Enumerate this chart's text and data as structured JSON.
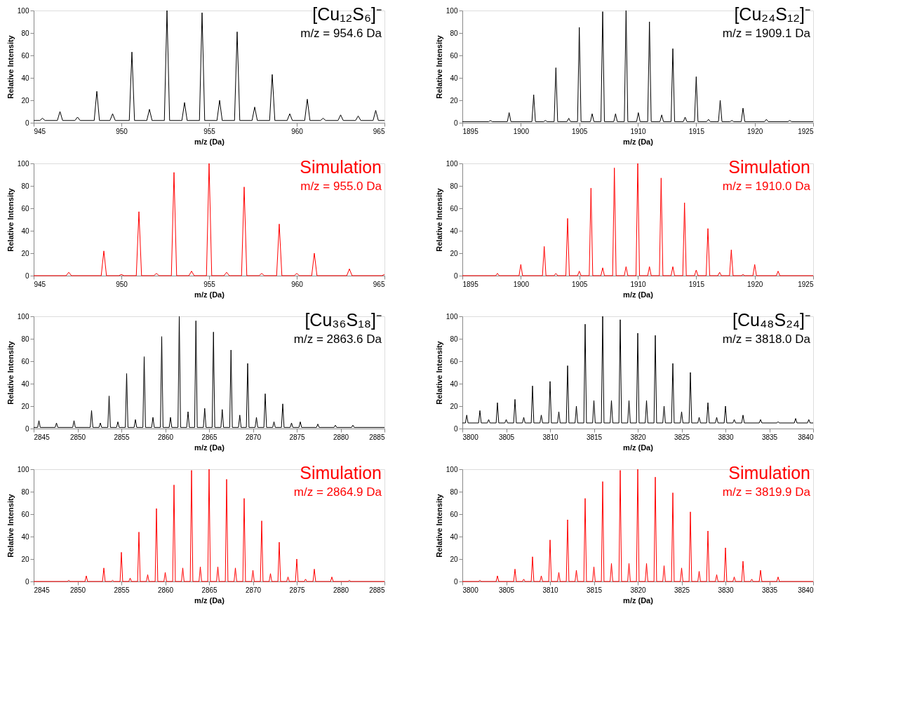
{
  "chart_data": [
    {
      "type": "line",
      "title": "[Cu₁₂S₆]⁻",
      "subtitle": "m/z = 954.6 Da",
      "xlabel": "m/z (Da)",
      "ylabel": "Relative Intensity",
      "xlim": [
        945,
        965
      ],
      "xticks": [
        945,
        950,
        955,
        960,
        965
      ],
      "ylim": [
        0,
        100
      ],
      "yticks": [
        0,
        20,
        40,
        60,
        80,
        100
      ],
      "series": [
        {
          "color": "#000000",
          "x": [
            945,
            945.35,
            945.5,
            945.65,
            946.35,
            946.5,
            946.65,
            947.35,
            947.5,
            947.65,
            948.45,
            948.6,
            948.75,
            949.35,
            949.5,
            949.65,
            950.45,
            950.6,
            950.75,
            951.45,
            951.6,
            951.75,
            952.45,
            952.6,
            952.75,
            953.45,
            953.6,
            953.75,
            954.45,
            954.6,
            954.75,
            955.45,
            955.6,
            955.75,
            956.45,
            956.6,
            956.75,
            957.45,
            957.6,
            957.75,
            958.45,
            958.6,
            958.75,
            959.45,
            959.6,
            959.75,
            960.45,
            960.6,
            960.75,
            961.35,
            961.5,
            961.65,
            962.35,
            962.5,
            962.65,
            963.35,
            963.5,
            963.65,
            964.35,
            964.5,
            964.65,
            965
          ],
          "values": [
            2,
            2,
            4,
            2,
            2,
            10,
            2,
            2,
            5,
            2,
            2,
            28,
            2,
            2,
            8,
            2,
            2,
            63,
            2,
            2,
            12,
            2,
            2,
            100,
            2,
            2,
            18,
            2,
            2,
            98,
            2,
            2,
            20,
            2,
            2,
            81,
            2,
            2,
            14,
            2,
            2,
            43,
            2,
            2,
            8,
            2,
            2,
            21,
            2,
            2,
            4,
            2,
            2,
            7,
            2,
            2,
            6,
            2,
            2,
            11,
            2,
            2
          ]
        }
      ]
    },
    {
      "type": "line",
      "title": "[Cu₂₄S₁₂]⁻",
      "subtitle": "m/z = 1909.1 Da",
      "xlabel": "m/z (Da)",
      "ylabel": "Relative Intensity",
      "xlim": [
        1895,
        1925
      ],
      "xticks": [
        1895,
        1900,
        1905,
        1910,
        1915,
        1920,
        1925
      ],
      "ylim": [
        0,
        100
      ],
      "yticks": [
        0,
        20,
        40,
        60,
        80,
        100
      ],
      "series": [
        {
          "color": "#000000",
          "x": [
            1895,
            1897.25,
            1897.4,
            1897.55,
            1898.85,
            1899,
            1899.15,
            1900.95,
            1901.1,
            1901.25,
            1901.95,
            1902.1,
            1902.25,
            1902.85,
            1903,
            1903.15,
            1903.95,
            1904.1,
            1904.25,
            1904.85,
            1905,
            1905.15,
            1905.95,
            1906.1,
            1906.25,
            1906.85,
            1907,
            1907.15,
            1907.95,
            1908.1,
            1908.25,
            1908.85,
            1909,
            1909.15,
            1909.9,
            1910.05,
            1910.2,
            1910.85,
            1911,
            1911.15,
            1911.9,
            1912.05,
            1912.2,
            1912.85,
            1913,
            1913.15,
            1913.9,
            1914.05,
            1914.2,
            1914.85,
            1915,
            1915.15,
            1915.9,
            1916.05,
            1916.2,
            1916.9,
            1917.05,
            1917.2,
            1917.9,
            1918.05,
            1918.2,
            1918.85,
            1919,
            1919.15,
            1920.85,
            1921,
            1921.15,
            1922.85,
            1923,
            1923.15,
            1925
          ],
          "values": [
            1,
            1,
            2,
            1,
            1,
            9,
            1,
            1,
            25,
            1,
            1,
            2,
            1,
            1,
            49,
            1,
            1,
            4,
            1,
            1,
            85,
            1,
            1,
            8,
            1,
            1,
            99,
            1,
            1,
            8,
            1,
            1,
            100,
            1,
            1,
            9,
            1,
            1,
            90,
            1,
            1,
            7,
            1,
            1,
            66,
            1,
            1,
            5,
            1,
            1,
            41,
            1,
            1,
            3,
            1,
            1,
            20,
            1,
            1,
            2,
            1,
            1,
            13,
            1,
            1,
            3,
            1,
            1,
            2,
            1,
            1
          ]
        }
      ]
    },
    {
      "type": "line",
      "title": "Simulation",
      "subtitle": "m/z = 955.0 Da",
      "xlabel": "m/z (Da)",
      "ylabel": "Relative Intensity",
      "xlim": [
        945,
        965
      ],
      "xticks": [
        945,
        950,
        955,
        960,
        965
      ],
      "ylim": [
        0,
        100
      ],
      "yticks": [
        0,
        20,
        40,
        60,
        80,
        100
      ],
      "series": [
        {
          "color": "#ff0000",
          "x": [
            945,
            946.85,
            947,
            947.15,
            948.85,
            949,
            949.15,
            949.85,
            950,
            950.15,
            950.85,
            951,
            951.15,
            951.85,
            952,
            952.15,
            952.85,
            953,
            953.15,
            953.85,
            954,
            954.15,
            954.85,
            955,
            955.15,
            955.85,
            956,
            956.15,
            956.85,
            957,
            957.15,
            957.85,
            958,
            958.15,
            958.85,
            959,
            959.15,
            959.85,
            960,
            960.15,
            960.85,
            961,
            961.15,
            962.85,
            963,
            963.15,
            964.85,
            965
          ],
          "values": [
            0,
            0,
            3,
            0,
            0,
            22,
            0,
            0,
            1,
            0,
            0,
            57,
            0,
            0,
            2,
            0,
            0,
            92,
            0,
            0,
            4,
            0,
            0,
            100,
            0,
            0,
            3,
            0,
            0,
            79,
            0,
            0,
            2,
            0,
            0,
            46,
            0,
            0,
            2,
            0,
            0,
            20,
            0,
            0,
            6,
            0,
            0,
            1
          ]
        }
      ]
    },
    {
      "type": "line",
      "title": "Simulation",
      "subtitle": "m/z = 1910.0 Da",
      "xlabel": "m/z (Da)",
      "ylabel": "Relative Intensity",
      "xlim": [
        1895,
        1925
      ],
      "xticks": [
        1895,
        1900,
        1905,
        1910,
        1915,
        1920,
        1925
      ],
      "ylim": [
        0,
        100
      ],
      "yticks": [
        0,
        20,
        40,
        60,
        80,
        100
      ],
      "series": [
        {
          "color": "#ff0000",
          "x": [
            1895,
            1897.85,
            1898,
            1898.15,
            1899.85,
            1900,
            1900.15,
            1901.85,
            1902,
            1902.15,
            1902.85,
            1903,
            1903.15,
            1903.85,
            1904,
            1904.15,
            1904.85,
            1905,
            1905.15,
            1905.85,
            1906,
            1906.15,
            1906.85,
            1907,
            1907.15,
            1907.85,
            1908,
            1908.15,
            1908.85,
            1909,
            1909.15,
            1909.85,
            1910,
            1910.15,
            1910.85,
            1911,
            1911.15,
            1911.85,
            1912,
            1912.15,
            1912.85,
            1913,
            1913.15,
            1913.85,
            1914,
            1914.15,
            1914.85,
            1915,
            1915.15,
            1915.85,
            1916,
            1916.15,
            1916.85,
            1917,
            1917.15,
            1917.85,
            1918,
            1918.15,
            1918.85,
            1919,
            1919.15,
            1919.85,
            1920,
            1920.15,
            1921.85,
            1922,
            1922.15,
            1925
          ],
          "values": [
            0,
            0,
            2,
            0,
            0,
            10,
            0,
            0,
            26,
            0,
            0,
            2,
            0,
            0,
            51,
            0,
            0,
            4,
            0,
            0,
            78,
            0,
            0,
            7,
            0,
            0,
            96,
            0,
            0,
            8,
            0,
            0,
            100,
            0,
            0,
            8,
            0,
            0,
            87,
            0,
            0,
            8,
            0,
            0,
            65,
            0,
            0,
            5,
            0,
            0,
            42,
            0,
            0,
            3,
            0,
            0,
            23,
            0,
            0,
            1,
            0,
            0,
            10,
            0,
            0,
            4,
            0,
            0
          ]
        }
      ]
    },
    {
      "type": "line",
      "title": "[Cu₃₆S₁₈]⁻",
      "subtitle": "m/z = 2863.6 Da",
      "xlabel": "m/z (Da)",
      "ylabel": "Relative Intensity",
      "xlim": [
        2845,
        2885
      ],
      "xticks": [
        2845,
        2850,
        2855,
        2860,
        2865,
        2870,
        2875,
        2880,
        2885
      ],
      "ylim": [
        0,
        100
      ],
      "yticks": [
        0,
        20,
        40,
        60,
        80,
        100
      ],
      "series": [
        {
          "color": "#000000",
          "x": [
            2845,
            2845.45,
            2845.6,
            2845.75,
            2847.45,
            2847.6,
            2847.75,
            2849.45,
            2849.6,
            2849.75,
            2851.45,
            2851.6,
            2851.75,
            2852.45,
            2852.6,
            2852.75,
            2853.45,
            2853.6,
            2853.75,
            2854.45,
            2854.6,
            2854.75,
            2855.45,
            2855.6,
            2855.75,
            2856.45,
            2856.6,
            2856.75,
            2857.45,
            2857.6,
            2857.75,
            2858.45,
            2858.6,
            2858.75,
            2859.45,
            2859.6,
            2859.75,
            2860.45,
            2860.6,
            2860.75,
            2861.45,
            2861.6,
            2861.75,
            2862.45,
            2862.6,
            2862.75,
            2863.35,
            2863.5,
            2863.65,
            2864.35,
            2864.5,
            2864.65,
            2865.35,
            2865.5,
            2865.65,
            2866.35,
            2866.5,
            2866.65,
            2867.35,
            2867.5,
            2867.65,
            2868.35,
            2868.5,
            2868.65,
            2869.25,
            2869.4,
            2869.55,
            2870.25,
            2870.4,
            2870.55,
            2871.25,
            2871.4,
            2871.55,
            2872.25,
            2872.4,
            2872.55,
            2873.25,
            2873.4,
            2873.55,
            2874.25,
            2874.4,
            2874.55,
            2875.25,
            2875.4,
            2875.55,
            2877.25,
            2877.4,
            2877.55,
            2879.25,
            2879.4,
            2879.55,
            2881.25,
            2881.4,
            2881.55,
            2885
          ],
          "values": [
            1,
            1,
            7,
            1,
            1,
            5,
            1,
            1,
            7,
            1,
            1,
            16,
            1,
            1,
            5,
            1,
            1,
            29,
            1,
            1,
            6,
            1,
            1,
            49,
            1,
            1,
            8,
            1,
            1,
            64,
            1,
            1,
            10,
            1,
            1,
            82,
            1,
            1,
            10,
            1,
            1,
            100,
            1,
            1,
            15,
            1,
            1,
            96,
            1,
            1,
            18,
            1,
            1,
            86,
            1,
            1,
            17,
            1,
            1,
            70,
            1,
            1,
            12,
            1,
            1,
            58,
            1,
            1,
            10,
            1,
            1,
            31,
            1,
            1,
            6,
            1,
            1,
            22,
            1,
            1,
            5,
            1,
            1,
            6,
            1,
            1,
            4,
            1,
            1,
            3,
            1,
            1,
            3,
            1,
            1
          ]
        }
      ]
    },
    {
      "type": "line",
      "title": "[Cu₄₈S₂₄]⁻",
      "subtitle": "m/z = 3818.0 Da",
      "xlabel": "m/z (Da)",
      "ylabel": "Relative Intensity",
      "xlim": [
        3800,
        3840
      ],
      "xticks": [
        3800,
        3805,
        3810,
        3815,
        3820,
        3825,
        3830,
        3835,
        3840
      ],
      "ylim": [
        0,
        100
      ],
      "yticks": [
        0,
        20,
        40,
        60,
        80,
        100
      ],
      "series": [
        {
          "color": "#000000",
          "x": [
            3800,
            3800.35,
            3800.5,
            3800.65,
            3801.85,
            3802,
            3802.15,
            3802.85,
            3803,
            3803.15,
            3803.85,
            3804,
            3804.15,
            3804.85,
            3805,
            3805.15,
            3805.85,
            3806,
            3806.15,
            3806.85,
            3807,
            3807.15,
            3807.85,
            3808,
            3808.15,
            3808.85,
            3809,
            3809.15,
            3809.85,
            3810,
            3810.15,
            3810.85,
            3811,
            3811.15,
            3811.85,
            3812,
            3812.15,
            3812.85,
            3813,
            3813.15,
            3813.85,
            3814,
            3814.15,
            3814.85,
            3815,
            3815.15,
            3815.85,
            3816,
            3816.15,
            3816.85,
            3817,
            3817.15,
            3817.85,
            3818,
            3818.15,
            3818.85,
            3819,
            3819.15,
            3819.85,
            3820,
            3820.15,
            3820.85,
            3821,
            3821.15,
            3821.85,
            3822,
            3822.15,
            3822.85,
            3823,
            3823.15,
            3823.85,
            3824,
            3824.15,
            3824.85,
            3825,
            3825.15,
            3825.85,
            3826,
            3826.15,
            3826.85,
            3827,
            3827.15,
            3827.85,
            3828,
            3828.15,
            3828.85,
            3829,
            3829.15,
            3829.85,
            3830,
            3830.15,
            3830.85,
            3831,
            3831.15,
            3831.85,
            3832,
            3832.15,
            3833.85,
            3834,
            3834.15,
            3835.85,
            3836,
            3836.15,
            3837.85,
            3838,
            3838.15,
            3839.35,
            3839.5,
            3839.65,
            3840
          ],
          "values": [
            5,
            5,
            12,
            5,
            5,
            16,
            5,
            5,
            8,
            5,
            5,
            23,
            5,
            5,
            8,
            5,
            5,
            26,
            5,
            5,
            10,
            5,
            5,
            38,
            5,
            5,
            12,
            5,
            5,
            42,
            5,
            5,
            15,
            5,
            5,
            56,
            5,
            5,
            20,
            5,
            5,
            93,
            5,
            5,
            25,
            5,
            5,
            100,
            5,
            5,
            25,
            5,
            5,
            97,
            5,
            5,
            25,
            5,
            5,
            85,
            5,
            5,
            25,
            5,
            5,
            83,
            5,
            5,
            20,
            5,
            5,
            58,
            5,
            5,
            15,
            5,
            5,
            50,
            5,
            5,
            10,
            5,
            5,
            23,
            5,
            5,
            10,
            5,
            5,
            20,
            5,
            5,
            8,
            5,
            5,
            12,
            5,
            5,
            8,
            5,
            5,
            6,
            5,
            5,
            9,
            5,
            5,
            8,
            5,
            5
          ]
        }
      ]
    },
    {
      "type": "line",
      "title": "Simulation",
      "subtitle": "m/z = 2864.9 Da",
      "xlabel": "m/z (Da)",
      "ylabel": "Relative Intensity",
      "xlim": [
        2845,
        2885
      ],
      "xticks": [
        2845,
        2850,
        2855,
        2860,
        2865,
        2870,
        2875,
        2880,
        2885
      ],
      "ylim": [
        0,
        100
      ],
      "yticks": [
        0,
        20,
        40,
        60,
        80,
        100
      ],
      "series": [
        {
          "color": "#ff0000",
          "x": [
            2845,
            2848.85,
            2849,
            2849.15,
            2850.85,
            2851,
            2851.15,
            2852.85,
            2853,
            2853.15,
            2853.85,
            2854,
            2854.15,
            2854.85,
            2855,
            2855.15,
            2855.85,
            2856,
            2856.15,
            2856.85,
            2857,
            2857.15,
            2857.85,
            2858,
            2858.15,
            2858.85,
            2859,
            2859.15,
            2859.85,
            2860,
            2860.15,
            2860.85,
            2861,
            2861.15,
            2861.85,
            2862,
            2862.15,
            2862.85,
            2863,
            2863.15,
            2863.85,
            2864,
            2864.15,
            2864.85,
            2865,
            2865.15,
            2865.85,
            2866,
            2866.15,
            2866.85,
            2867,
            2867.15,
            2867.85,
            2868,
            2868.15,
            2868.85,
            2869,
            2869.15,
            2869.85,
            2870,
            2870.15,
            2870.85,
            2871,
            2871.15,
            2871.85,
            2872,
            2872.15,
            2872.85,
            2873,
            2873.15,
            2873.85,
            2874,
            2874.15,
            2874.85,
            2875,
            2875.15,
            2875.85,
            2876,
            2876.15,
            2876.85,
            2877,
            2877.15,
            2878.85,
            2879,
            2879.15,
            2880.85,
            2881,
            2881.15,
            2885
          ],
          "values": [
            0,
            0,
            1,
            0,
            0,
            5,
            0,
            0,
            12,
            0,
            0,
            1,
            0,
            0,
            26,
            0,
            0,
            3,
            0,
            0,
            44,
            0,
            0,
            6,
            0,
            0,
            65,
            0,
            0,
            8,
            0,
            0,
            86,
            0,
            0,
            12,
            0,
            0,
            99,
            0,
            0,
            13,
            0,
            0,
            100,
            0,
            0,
            13,
            0,
            0,
            91,
            0,
            0,
            12,
            0,
            0,
            74,
            0,
            0,
            10,
            0,
            0,
            54,
            0,
            0,
            7,
            0,
            0,
            35,
            0,
            0,
            4,
            0,
            0,
            20,
            0,
            0,
            2,
            0,
            0,
            11,
            0,
            0,
            4,
            0,
            0,
            1,
            0,
            0
          ]
        }
      ]
    },
    {
      "type": "line",
      "title": "Simulation",
      "subtitle": "m/z = 3819.9 Da",
      "xlabel": "m/z (Da)",
      "ylabel": "Relative Intensity",
      "xlim": [
        3800,
        3840
      ],
      "xticks": [
        3800,
        3805,
        3810,
        3815,
        3820,
        3825,
        3830,
        3835,
        3840
      ],
      "ylim": [
        0,
        100
      ],
      "yticks": [
        0,
        20,
        40,
        60,
        80,
        100
      ],
      "series": [
        {
          "color": "#ff0000",
          "x": [
            3800,
            3801.85,
            3802,
            3802.15,
            3803.85,
            3804,
            3804.15,
            3805.85,
            3806,
            3806.15,
            3806.85,
            3807,
            3807.15,
            3807.85,
            3808,
            3808.15,
            3808.85,
            3809,
            3809.15,
            3809.85,
            3810,
            3810.15,
            3810.85,
            3811,
            3811.15,
            3811.85,
            3812,
            3812.15,
            3812.85,
            3813,
            3813.15,
            3813.85,
            3814,
            3814.15,
            3814.85,
            3815,
            3815.15,
            3815.85,
            3816,
            3816.15,
            3816.85,
            3817,
            3817.15,
            3817.85,
            3818,
            3818.15,
            3818.85,
            3819,
            3819.15,
            3819.85,
            3820,
            3820.15,
            3820.85,
            3821,
            3821.15,
            3821.85,
            3822,
            3822.15,
            3822.85,
            3823,
            3823.15,
            3823.85,
            3824,
            3824.15,
            3824.85,
            3825,
            3825.15,
            3825.85,
            3826,
            3826.15,
            3826.85,
            3827,
            3827.15,
            3827.85,
            3828,
            3828.15,
            3828.85,
            3829,
            3829.15,
            3829.85,
            3830,
            3830.15,
            3830.85,
            3831,
            3831.15,
            3831.85,
            3832,
            3832.15,
            3832.85,
            3833,
            3833.15,
            3833.85,
            3834,
            3834.15,
            3835.85,
            3836,
            3836.15,
            3840
          ],
          "values": [
            0,
            0,
            1,
            0,
            0,
            5,
            0,
            0,
            11,
            0,
            0,
            2,
            0,
            0,
            22,
            0,
            0,
            5,
            0,
            0,
            37,
            0,
            0,
            8,
            0,
            0,
            55,
            0,
            0,
            10,
            0,
            0,
            74,
            0,
            0,
            13,
            0,
            0,
            89,
            0,
            0,
            16,
            0,
            0,
            99,
            0,
            0,
            16,
            0,
            0,
            100,
            0,
            0,
            16,
            0,
            0,
            93,
            0,
            0,
            14,
            0,
            0,
            79,
            0,
            0,
            12,
            0,
            0,
            62,
            0,
            0,
            9,
            0,
            0,
            45,
            0,
            0,
            6,
            0,
            0,
            30,
            0,
            0,
            4,
            0,
            0,
            18,
            0,
            0,
            2,
            0,
            0,
            10,
            0,
            0,
            4,
            0,
            0
          ]
        }
      ]
    }
  ]
}
